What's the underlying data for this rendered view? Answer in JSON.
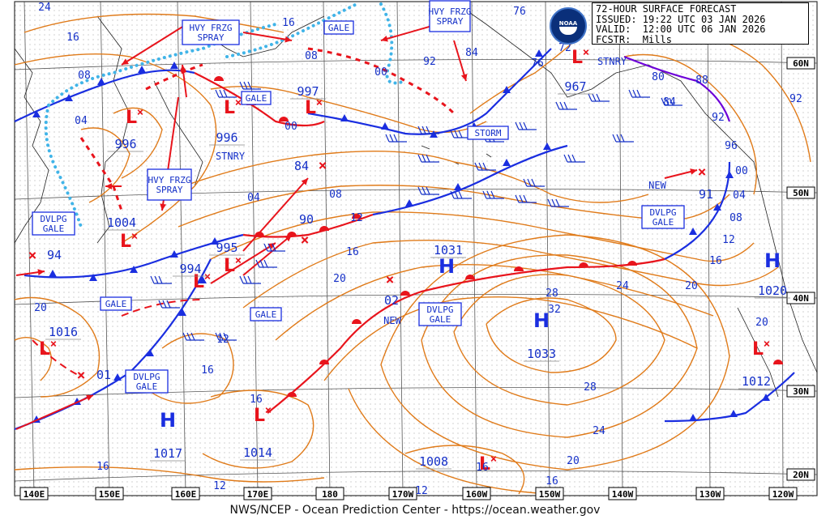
{
  "header": {
    "title": "72-HOUR SURFACE FORECAST",
    "issued": "ISSUED: 19:22 UTC 03 JAN 2026",
    "valid": "VALID:  12:00 UTC 06 JAN 2026",
    "forecaster": "FCSTR:  Mills",
    "logo_text": "NOAA"
  },
  "footer": "NWS/NCEP - Ocean Prediction Center - https://ocean.weather.gov",
  "longitude_labels": [
    "140E",
    "150E",
    "160E",
    "170E",
    "180",
    "170W",
    "160W",
    "150W",
    "140W",
    "130W",
    "120W"
  ],
  "latitude_labels": [
    "60N",
    "50N",
    "40N",
    "30N",
    "20N"
  ],
  "pressure_centers": [
    {
      "type": "L",
      "value": "996"
    },
    {
      "type": "L",
      "value": "1004"
    },
    {
      "type": "L",
      "value": "997"
    },
    {
      "type": "L",
      "value": "996"
    },
    {
      "type": "L",
      "value": "994"
    },
    {
      "type": "L",
      "value": "995"
    },
    {
      "type": "L",
      "value": "1016"
    },
    {
      "type": "L",
      "value": "1014"
    },
    {
      "type": "L",
      "value": "1008"
    },
    {
      "type": "L",
      "value": "967"
    },
    {
      "type": "L",
      "value": "1012"
    },
    {
      "type": "H",
      "value": "1031"
    },
    {
      "type": "H",
      "value": "1033"
    },
    {
      "type": "H",
      "value": "1017"
    },
    {
      "type": "H",
      "value": "1020"
    }
  ],
  "forecast_positions": [
    "84",
    "90",
    "02",
    "01",
    "94",
    "91"
  ],
  "warning_labels": [
    "HVY FRZG SPRAY",
    "GALE",
    "HVY FRZG SPRAY",
    "HVY FRZG SPRAY",
    "GALE",
    "STORM",
    "DVLPG GALE",
    "GALE",
    "GALE",
    "DVLPG GALE",
    "DVLPG GALE",
    "DVLPG GALE"
  ],
  "annotations": [
    "STNRY",
    "STNRY",
    "NEW",
    "NEW"
  ],
  "isobar_labels": [
    "24",
    "16",
    "16",
    "08",
    "04",
    "00",
    "08",
    "00",
    "92",
    "84",
    "76",
    "72",
    "76",
    "80",
    "88",
    "92",
    "84",
    "92",
    "96",
    "00",
    "04",
    "08",
    "12",
    "16",
    "20",
    "24",
    "28",
    "32",
    "28",
    "24",
    "20",
    "16",
    "12",
    "08",
    "04",
    "12",
    "16",
    "20",
    "16",
    "12",
    "16",
    "16",
    "20",
    "20",
    "12",
    "16"
  ],
  "colors": {
    "isobar": "#e07b1a",
    "warm_front": "#e8141c",
    "cold_front": "#1a2ee0",
    "ice_edge": "#40b4e8",
    "text_blue": "#1530c8",
    "grid": "#555555",
    "stationary": "#6d00d8"
  }
}
